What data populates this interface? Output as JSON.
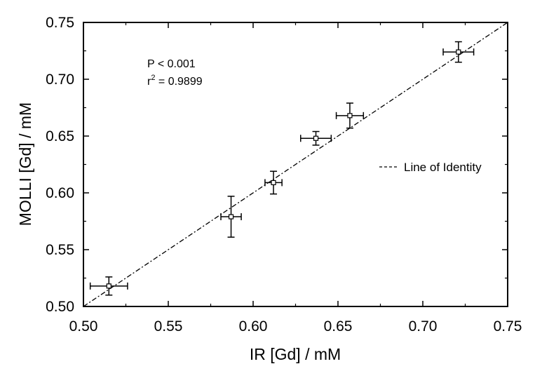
{
  "chart_data": {
    "type": "scatter",
    "xlabel": "IR [Gd] / mM",
    "ylabel": "MOLLI [Gd] / mM",
    "xlim": [
      0.5,
      0.75
    ],
    "ylim": [
      0.5,
      0.75
    ],
    "x_ticks": [
      "0.50",
      "0.55",
      "0.60",
      "0.65",
      "0.70",
      "0.75"
    ],
    "y_ticks": [
      "0.50",
      "0.55",
      "0.60",
      "0.65",
      "0.70",
      "0.75"
    ],
    "grid": false,
    "points": [
      {
        "x": 0.515,
        "y": 0.518,
        "x_err": 0.011,
        "y_err": 0.008
      },
      {
        "x": 0.587,
        "y": 0.579,
        "x_err": 0.006,
        "y_err": 0.018
      },
      {
        "x": 0.612,
        "y": 0.609,
        "x_err": 0.005,
        "y_err": 0.01
      },
      {
        "x": 0.637,
        "y": 0.648,
        "x_err": 0.009,
        "y_err": 0.006
      },
      {
        "x": 0.657,
        "y": 0.668,
        "x_err": 0.008,
        "y_err": 0.011
      },
      {
        "x": 0.721,
        "y": 0.724,
        "x_err": 0.009,
        "y_err": 0.009
      }
    ],
    "reference_line": {
      "label": "Line of Identity",
      "style": "dash-dot",
      "from": [
        0.5,
        0.5
      ],
      "to": [
        0.75,
        0.75
      ]
    },
    "annotations": {
      "p_value": "P < 0.001",
      "r2_prefix": "r",
      "r2_sup": "2",
      "r2_value": " = 0.9899"
    },
    "legend_position": "right"
  }
}
